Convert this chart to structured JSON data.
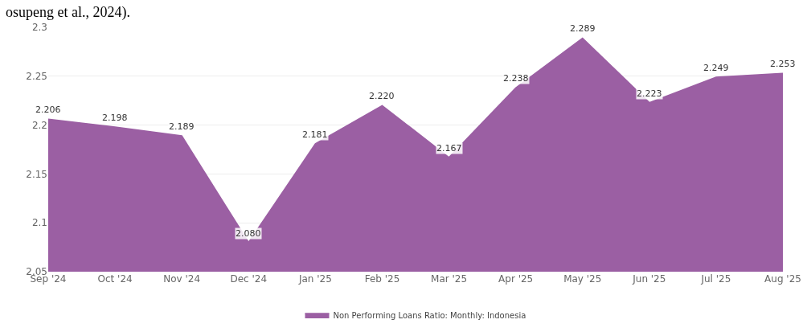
{
  "chart_data": {
    "type": "area",
    "categories": [
      "Sep '24",
      "Oct '24",
      "Nov '24",
      "Dec '24",
      "Jan '25",
      "Feb '25",
      "Mar '25",
      "Apr '25",
      "May '25",
      "Jun '25",
      "Jul '25",
      "Aug '25"
    ],
    "series": [
      {
        "name": "Non Performing Loans Ratio: Monthly: Indonesia",
        "color": "#9b5fa3",
        "values": [
          2.206,
          2.198,
          2.189,
          2.08,
          2.181,
          2.22,
          2.167,
          2.238,
          2.289,
          2.223,
          2.249,
          2.253
        ],
        "value_labels": [
          "2.206",
          "2.198",
          "2.189",
          "2.080",
          "2.181",
          "2.220",
          "2.167",
          "2.238",
          "2.289",
          "2.223",
          "2.249",
          "2.253"
        ]
      }
    ],
    "ylim": [
      2.05,
      2.3
    ],
    "yticks": [
      2.05,
      2.1,
      2.15,
      2.2,
      2.25,
      2.3
    ],
    "grid": "y",
    "legend": "bottom",
    "annotations": [
      "osupeng et al., 2024)."
    ]
  }
}
